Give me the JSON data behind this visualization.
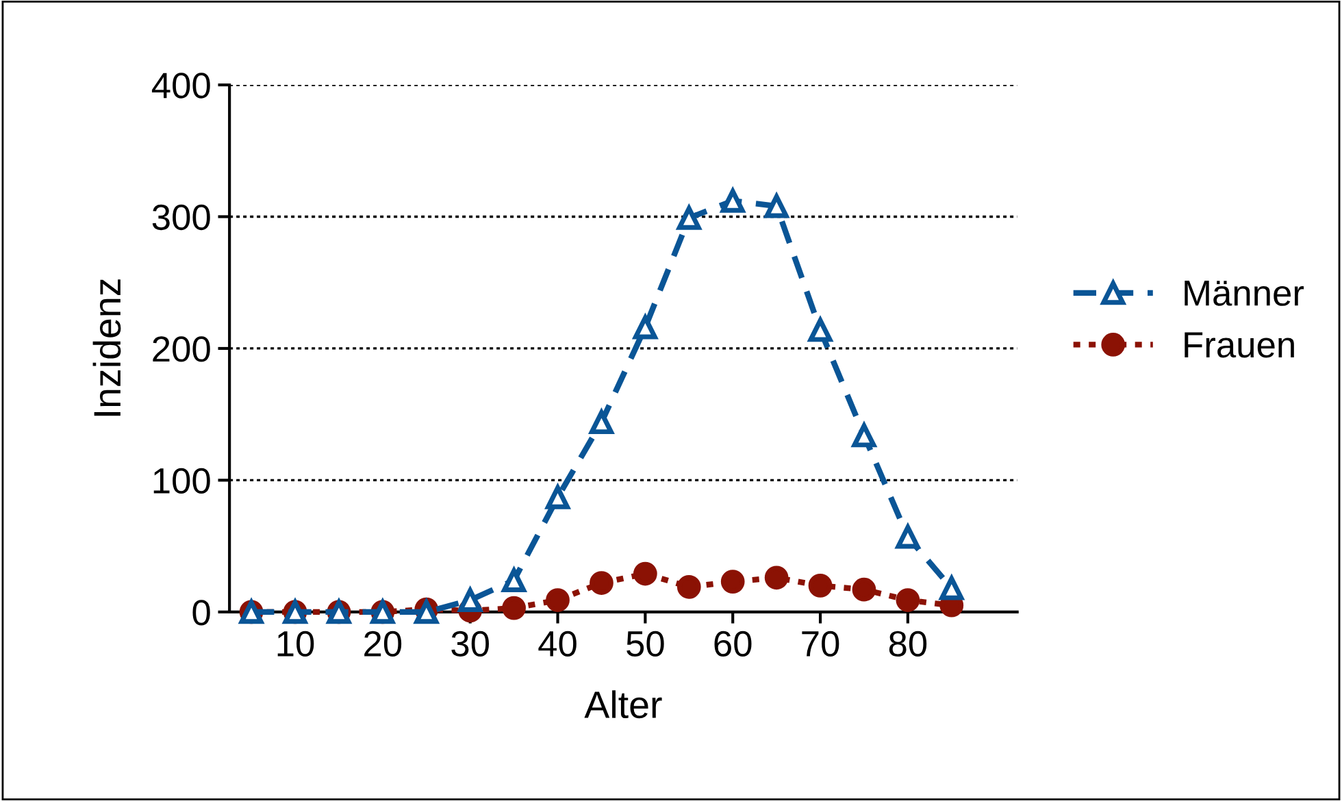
{
  "chart_data": {
    "type": "line",
    "xlabel": "Alter",
    "ylabel": "Inzidenz",
    "x": [
      5,
      10,
      15,
      20,
      25,
      30,
      35,
      40,
      45,
      50,
      55,
      60,
      65,
      70,
      75,
      80,
      85
    ],
    "series": [
      {
        "name": "Männer",
        "color": "#0a5596",
        "marker": "triangle",
        "line_style": "dashed",
        "values": [
          0,
          0,
          0,
          0,
          0,
          9,
          24,
          87,
          144,
          216,
          299,
          312,
          308,
          214,
          134,
          57,
          18
        ]
      },
      {
        "name": "Frauen",
        "color": "#8b1204",
        "marker": "circle",
        "line_style": "dotted",
        "values": [
          0,
          0,
          0,
          0,
          2,
          1,
          3,
          9,
          22,
          29,
          19,
          23,
          26,
          20,
          17,
          9,
          5
        ]
      }
    ],
    "xlim": [
      2.5,
      92.5
    ],
    "xticks": [
      10,
      20,
      30,
      40,
      50,
      60,
      70,
      80
    ],
    "ylim": [
      0,
      400
    ],
    "yticks": [
      0,
      100,
      200,
      300,
      400
    ],
    "grid": "y",
    "legend": "right"
  }
}
